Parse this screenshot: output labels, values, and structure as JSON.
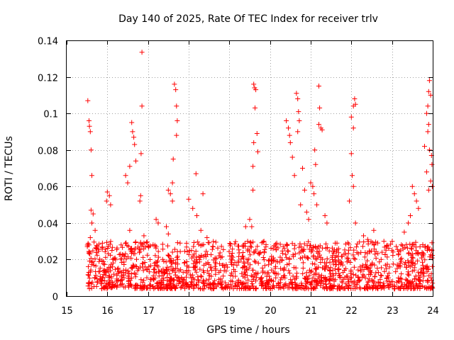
{
  "chart_data": {
    "type": "scatter",
    "title": "Day 140 of 2025, Rate Of TEC Index for receiver trlv",
    "xlabel": "GPS time / hours",
    "ylabel": "ROTI / TECUs",
    "xlim": [
      15,
      24
    ],
    "ylim": [
      0,
      0.14
    ],
    "xticks": [
      "15",
      "16",
      "17",
      "18",
      "19",
      "20",
      "21",
      "22",
      "23",
      "24"
    ],
    "yticks": [
      "0",
      "0.02",
      "0.04",
      "0.06",
      "0.08",
      "0.1",
      "0.12",
      "0.14"
    ],
    "grid": true,
    "marker": "plus",
    "color": "#ff0000",
    "series": [
      {
        "name": "ROTI",
        "points": [
          [
            15.52,
            0.107
          ],
          [
            15.55,
            0.096
          ],
          [
            15.56,
            0.093
          ],
          [
            15.58,
            0.09
          ],
          [
            15.6,
            0.08
          ],
          [
            15.62,
            0.066
          ],
          [
            15.6,
            0.047
          ],
          [
            15.62,
            0.04
          ],
          [
            15.58,
            0.032
          ],
          [
            15.55,
            0.028
          ],
          [
            15.65,
            0.045
          ],
          [
            15.7,
            0.036
          ],
          [
            16.0,
            0.057
          ],
          [
            16.05,
            0.055
          ],
          [
            16.08,
            0.05
          ],
          [
            15.98,
            0.052
          ],
          [
            16.45,
            0.066
          ],
          [
            16.5,
            0.062
          ],
          [
            16.55,
            0.071
          ],
          [
            16.6,
            0.095
          ],
          [
            16.62,
            0.09
          ],
          [
            16.65,
            0.087
          ],
          [
            16.67,
            0.083
          ],
          [
            16.7,
            0.074
          ],
          [
            16.8,
            0.052
          ],
          [
            16.82,
            0.055
          ],
          [
            16.85,
            0.1335
          ],
          [
            16.85,
            0.104
          ],
          [
            16.83,
            0.078
          ],
          [
            16.55,
            0.036
          ],
          [
            16.9,
            0.033
          ],
          [
            17.2,
            0.042
          ],
          [
            17.25,
            0.04
          ],
          [
            17.45,
            0.038
          ],
          [
            17.5,
            0.034
          ],
          [
            17.5,
            0.058
          ],
          [
            17.55,
            0.056
          ],
          [
            17.6,
            0.052
          ],
          [
            17.65,
            0.116
          ],
          [
            17.68,
            0.113
          ],
          [
            17.7,
            0.104
          ],
          [
            17.72,
            0.096
          ],
          [
            17.7,
            0.088
          ],
          [
            17.62,
            0.075
          ],
          [
            17.6,
            0.062
          ],
          [
            18.0,
            0.053
          ],
          [
            18.1,
            0.048
          ],
          [
            18.18,
            0.067
          ],
          [
            18.2,
            0.044
          ],
          [
            18.35,
            0.056
          ],
          [
            18.3,
            0.036
          ],
          [
            18.45,
            0.032
          ],
          [
            18.6,
            0.027
          ],
          [
            19.4,
            0.038
          ],
          [
            19.45,
            0.03
          ],
          [
            19.5,
            0.042
          ],
          [
            19.55,
            0.038
          ],
          [
            19.58,
            0.058
          ],
          [
            19.6,
            0.116
          ],
          [
            19.62,
            0.114
          ],
          [
            19.65,
            0.113
          ],
          [
            19.63,
            0.103
          ],
          [
            19.68,
            0.089
          ],
          [
            19.6,
            0.084
          ],
          [
            19.58,
            0.071
          ],
          [
            19.7,
            0.079
          ],
          [
            19.85,
            0.03
          ],
          [
            19.9,
            0.027
          ],
          [
            20.4,
            0.096
          ],
          [
            20.45,
            0.092
          ],
          [
            20.48,
            0.088
          ],
          [
            20.5,
            0.084
          ],
          [
            20.55,
            0.076
          ],
          [
            20.6,
            0.066
          ],
          [
            20.65,
            0.111
          ],
          [
            20.68,
            0.108
          ],
          [
            20.7,
            0.101
          ],
          [
            20.72,
            0.096
          ],
          [
            20.68,
            0.09
          ],
          [
            20.8,
            0.07
          ],
          [
            20.85,
            0.058
          ],
          [
            20.75,
            0.05
          ],
          [
            20.9,
            0.046
          ],
          [
            20.95,
            0.042
          ],
          [
            21.0,
            0.062
          ],
          [
            21.05,
            0.06
          ],
          [
            21.08,
            0.056
          ],
          [
            21.1,
            0.08
          ],
          [
            21.12,
            0.072
          ],
          [
            21.2,
            0.115
          ],
          [
            21.22,
            0.103
          ],
          [
            21.2,
            0.094
          ],
          [
            21.25,
            0.092
          ],
          [
            21.28,
            0.091
          ],
          [
            21.15,
            0.05
          ],
          [
            21.35,
            0.044
          ],
          [
            21.4,
            0.04
          ],
          [
            22.0,
            0.098
          ],
          [
            22.05,
            0.104
          ],
          [
            22.08,
            0.108
          ],
          [
            22.1,
            0.105
          ],
          [
            22.05,
            0.092
          ],
          [
            22.0,
            0.078
          ],
          [
            22.02,
            0.066
          ],
          [
            22.05,
            0.06
          ],
          [
            21.95,
            0.052
          ],
          [
            22.1,
            0.04
          ],
          [
            22.3,
            0.033
          ],
          [
            22.4,
            0.031
          ],
          [
            22.55,
            0.036
          ],
          [
            22.8,
            0.03
          ],
          [
            23.5,
            0.06
          ],
          [
            23.55,
            0.056
          ],
          [
            23.6,
            0.052
          ],
          [
            23.65,
            0.048
          ],
          [
            23.3,
            0.035
          ],
          [
            23.4,
            0.04
          ],
          [
            23.45,
            0.044
          ],
          [
            23.8,
            0.082
          ],
          [
            23.85,
            0.068
          ],
          [
            23.9,
            0.094
          ],
          [
            23.88,
            0.09
          ],
          [
            23.92,
            0.08
          ],
          [
            23.85,
            0.1
          ],
          [
            23.88,
            0.104
          ],
          [
            23.9,
            0.112
          ],
          [
            23.92,
            0.118
          ],
          [
            23.95,
            0.11
          ],
          [
            23.97,
            0.077
          ],
          [
            23.98,
            0.072
          ],
          [
            23.95,
            0.063
          ],
          [
            23.99,
            0.06
          ],
          [
            23.9,
            0.058
          ]
        ]
      }
    ],
    "dense_band": {
      "description": "dense background of points",
      "x_range": [
        15.5,
        24.0
      ],
      "y_range": [
        0.004,
        0.03
      ],
      "count": 1600,
      "seed": 140
    }
  }
}
